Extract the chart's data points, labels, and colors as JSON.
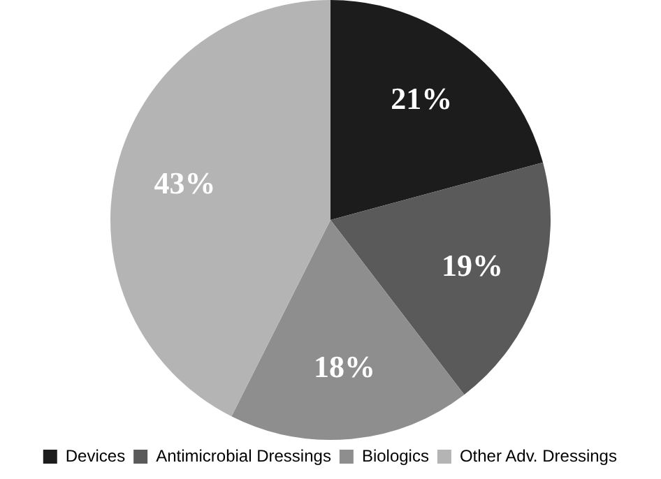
{
  "chart_data": {
    "type": "pie",
    "categories": [
      "Devices",
      "Antimicrobial Dressings",
      "Biologics",
      "Other Adv. Dressings"
    ],
    "values": [
      21,
      19,
      18,
      43
    ],
    "colors": [
      "#1c1c1c",
      "#5a5a5a",
      "#8e8e8e",
      "#b4b4b4"
    ],
    "value_labels": [
      "21%",
      "19%",
      "18%",
      "43%"
    ],
    "legend": "bottom"
  }
}
